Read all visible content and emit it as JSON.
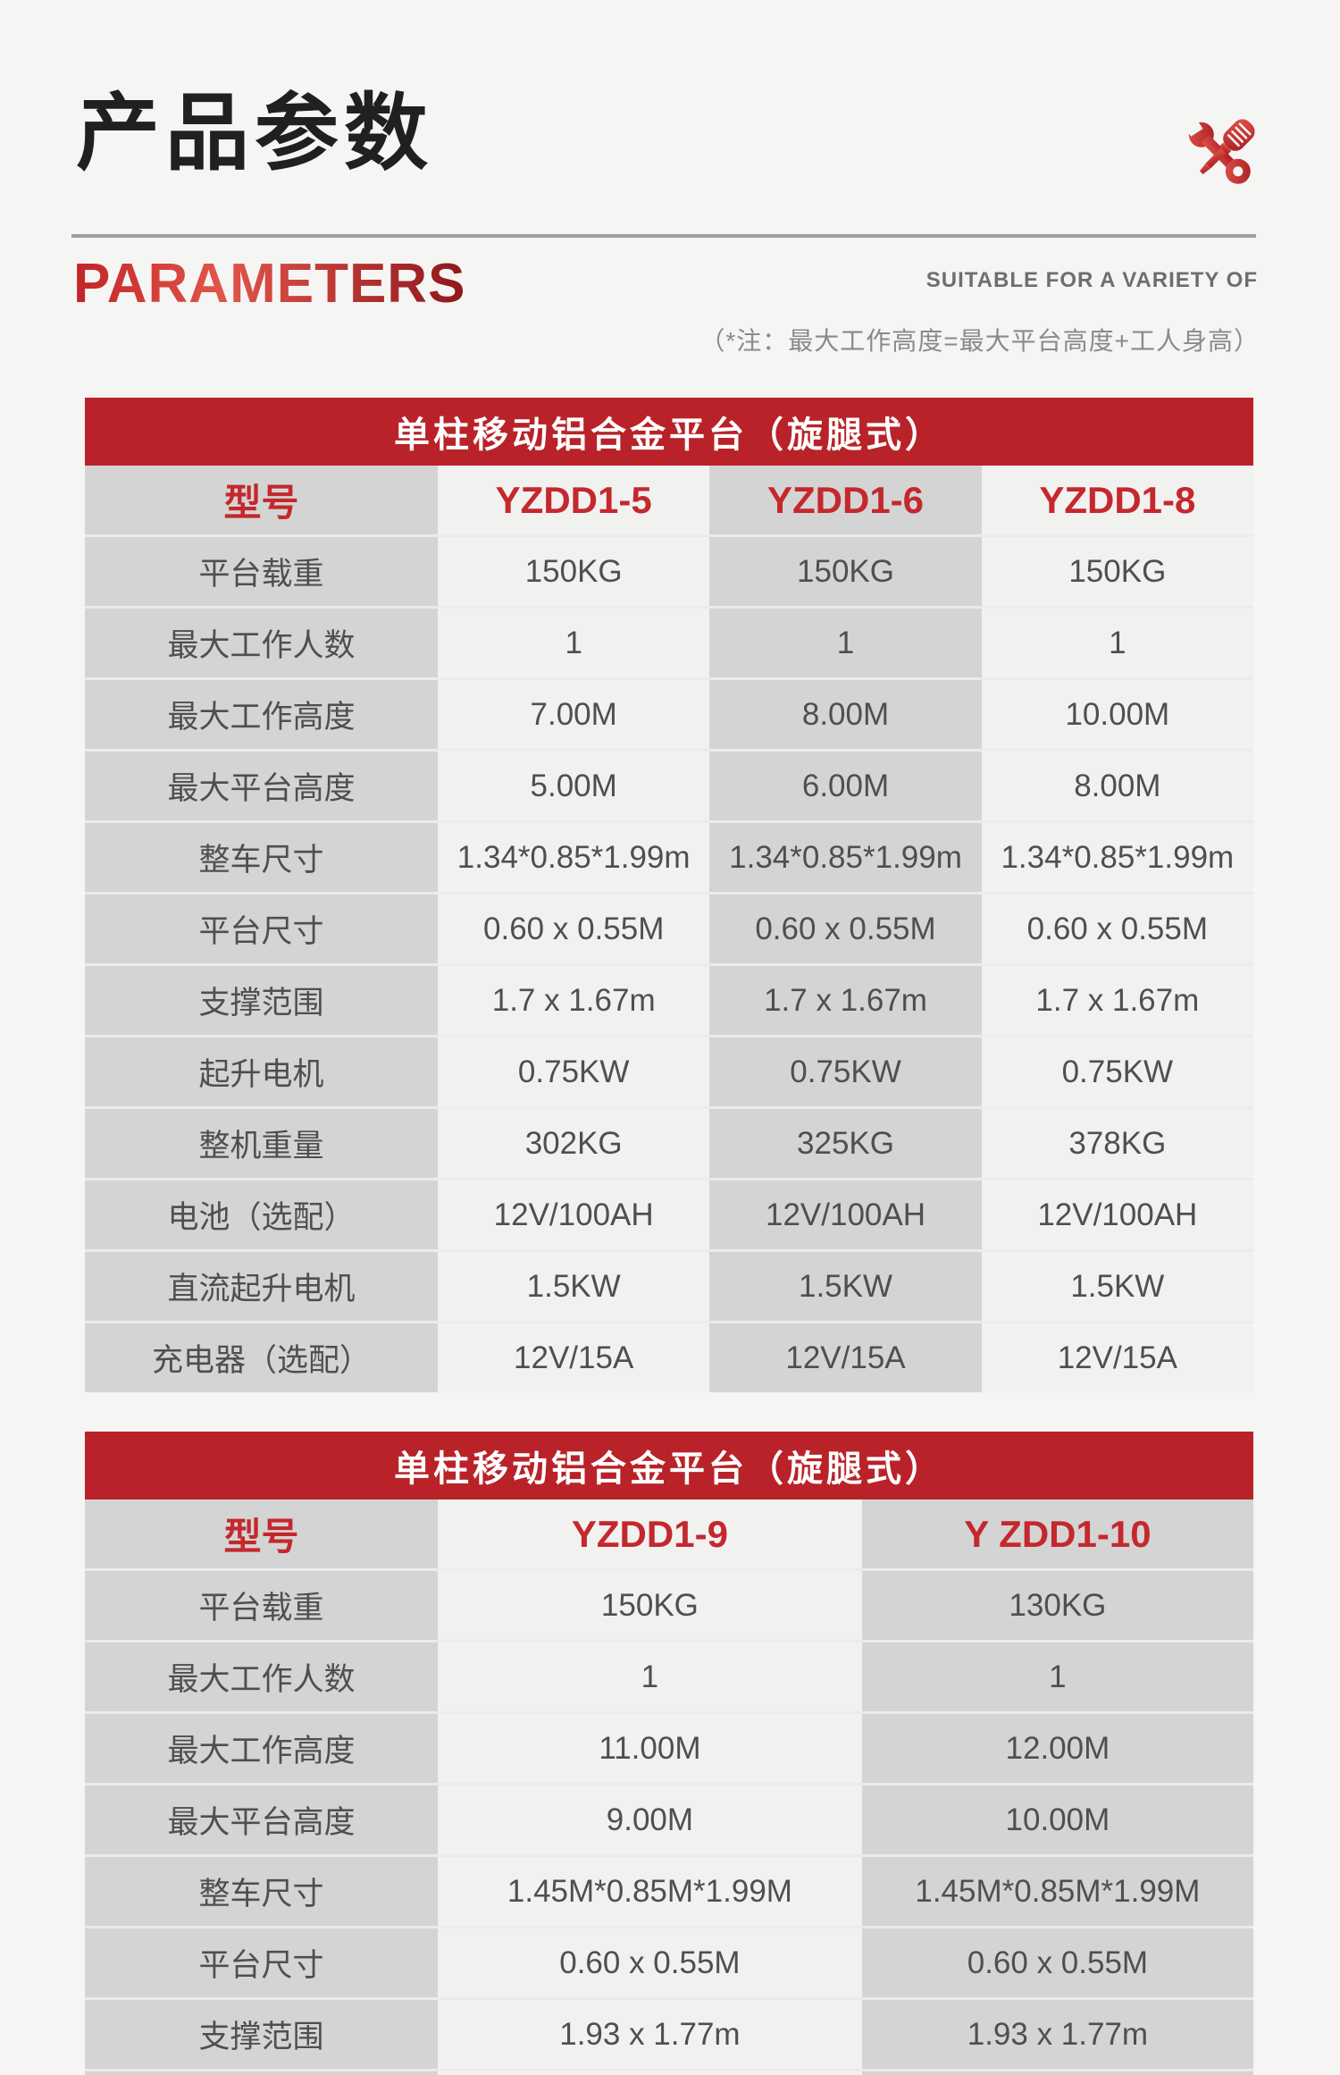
{
  "header": {
    "title_cn": "产品参数",
    "title_en": "PARAMETERS",
    "subtitle_en": "SUITABLE FOR A VARIETY OF",
    "note": "（*注：最大工作高度=最大平台高度+工人身高）",
    "icon": "wrench-screwdriver-icon"
  },
  "colors": {
    "accent_red": "#b92228",
    "model_text_red": "#c4282d",
    "cell_gray": "#d4d4d4",
    "cell_light": "#f1f1f0",
    "body_text": "#4f4f4f",
    "page_bg": "#f5f5f4"
  },
  "tables": [
    {
      "title": "单柱移动铝合金平台（旋腿式）",
      "model_row": {
        "label": "型号",
        "models": [
          "YZDD1-5",
          "YZDD1-6",
          "YZDD1-8"
        ]
      },
      "rows": [
        {
          "label": "平台载重",
          "values": [
            "150KG",
            "150KG",
            "150KG"
          ]
        },
        {
          "label": "最大工作人数",
          "values": [
            "1",
            "1",
            "1"
          ]
        },
        {
          "label": "最大工作高度",
          "values": [
            "7.00M",
            "8.00M",
            "10.00M"
          ]
        },
        {
          "label": "最大平台高度",
          "values": [
            "5.00M",
            "6.00M",
            "8.00M"
          ]
        },
        {
          "label": "整车尺寸",
          "values": [
            "1.34*0.85*1.99m",
            "1.34*0.85*1.99m",
            "1.34*0.85*1.99m"
          ]
        },
        {
          "label": "平台尺寸",
          "values": [
            "0.60 x 0.55M",
            "0.60 x 0.55M",
            "0.60 x 0.55M"
          ]
        },
        {
          "label": "支撑范围",
          "values": [
            "1.7 x 1.67m",
            "1.7 x 1.67m",
            "1.7 x 1.67m"
          ]
        },
        {
          "label": "起升电机",
          "values": [
            "0.75KW",
            "0.75KW",
            "0.75KW"
          ]
        },
        {
          "label": "整机重量",
          "values": [
            "302KG",
            "325KG",
            "378KG"
          ]
        },
        {
          "label": "电池（选配）",
          "values": [
            "12V/100AH",
            "12V/100AH",
            "12V/100AH"
          ]
        },
        {
          "label": "直流起升电机",
          "values": [
            "1.5KW",
            "1.5KW",
            "1.5KW"
          ]
        },
        {
          "label": "充电器（选配）",
          "values": [
            "12V/15A",
            "12V/15A",
            "12V/15A"
          ]
        }
      ]
    },
    {
      "title": "单柱移动铝合金平台（旋腿式）",
      "model_row": {
        "label": "型号",
        "models": [
          "YZDD1-9",
          "Y ZDD1-10"
        ]
      },
      "rows": [
        {
          "label": "平台载重",
          "values": [
            "150KG",
            "130KG"
          ]
        },
        {
          "label": "最大工作人数",
          "values": [
            "1",
            "1"
          ]
        },
        {
          "label": "最大工作高度",
          "values": [
            "11.00M",
            "12.00M"
          ]
        },
        {
          "label": "最大平台高度",
          "values": [
            "9.00M",
            "10.00M"
          ]
        },
        {
          "label": "整车尺寸",
          "values": [
            "1.45M*0.85M*1.99M",
            "1.45M*0.85M*1.99M"
          ]
        },
        {
          "label": "平台尺寸",
          "values": [
            "0.60 x 0.55M",
            "0.60 x 0.55M"
          ]
        },
        {
          "label": "支撑范围",
          "values": [
            "1.93 x 1.77m",
            "1.93 x 1.77m"
          ]
        }
      ],
      "partial_row": {
        "label": "",
        "values": [
          "",
          ""
        ]
      }
    }
  ]
}
